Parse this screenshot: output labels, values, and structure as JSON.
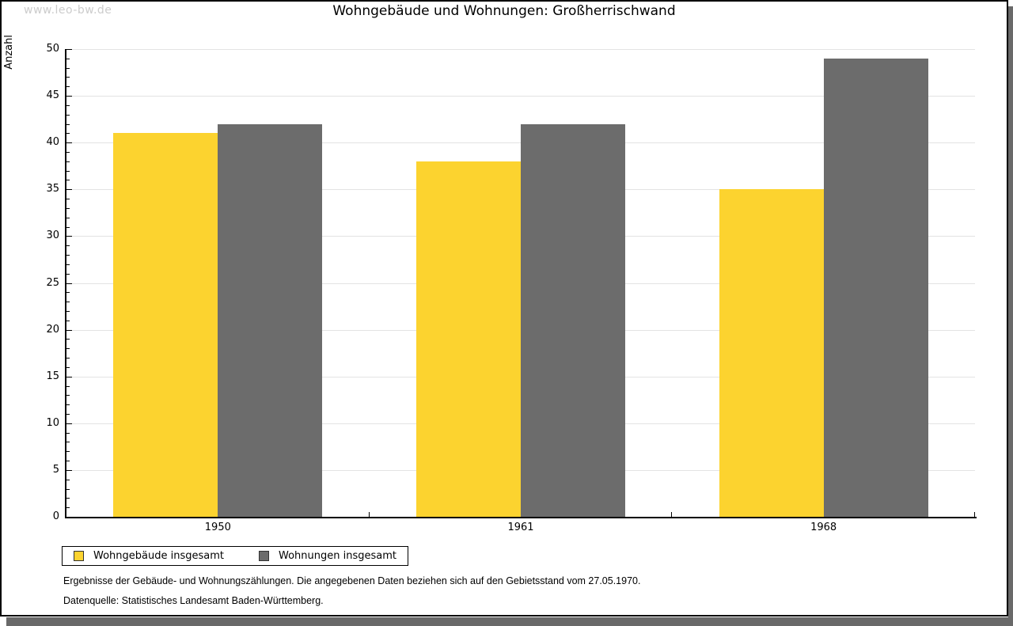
{
  "watermark": "www.leo-bw.de",
  "chart_data": {
    "type": "bar",
    "title": "Wohngebäude und Wohnungen: Großherrischwand",
    "categories": [
      "1950",
      "1961",
      "1968"
    ],
    "series": [
      {
        "name": "Wohngebäude insgesamt",
        "color": "#FCD32F",
        "values": [
          41,
          38,
          35
        ]
      },
      {
        "name": "Wohnungen insgesamt",
        "color": "#6C6C6C",
        "values": [
          42,
          42,
          49
        ]
      }
    ],
    "ylabel": "Anzahl",
    "xlabel": "",
    "ylim": [
      0,
      50
    ],
    "ytick_step": 5,
    "minor_tick_step": 1,
    "grid": true,
    "legend_position": "bottom-left"
  },
  "footer": {
    "line1": "Ergebnisse der Gebäude- und Wohnungszählungen. Die angegebenen Daten beziehen sich auf den Gebietsstand vom 27.05.1970.",
    "line2": "Datenquelle: Statistisches Landesamt Baden-Württemberg."
  },
  "colors": {
    "grid": "#e3e3e3",
    "axis": "#000000",
    "watermark": "#cccccc",
    "shadow": "#696969",
    "background": "#ffffff"
  }
}
